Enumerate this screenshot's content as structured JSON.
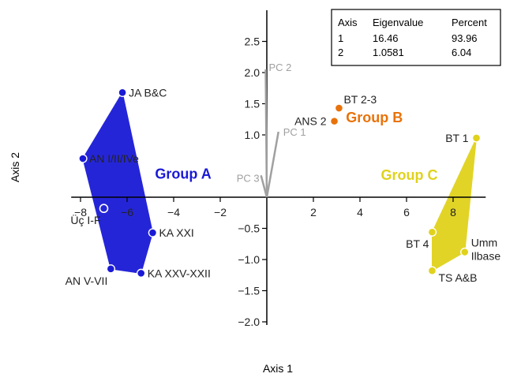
{
  "chart_data": {
    "type": "scatter",
    "xlabel": "Axis 1",
    "ylabel": "Axis 2",
    "xlim": [
      -8.4,
      9.4
    ],
    "ylim": [
      -2.05,
      3.0
    ],
    "x_ticks": [
      -8,
      -6,
      -4,
      -2,
      2,
      4,
      6,
      8
    ],
    "y_ticks": [
      -2.0,
      -1.5,
      -1.0,
      -0.5,
      1.0,
      1.5,
      2.0,
      2.5
    ],
    "grid": false,
    "groups": [
      {
        "name": "Group A",
        "color": "#1a1ad6",
        "label_at": [
          -4.8,
          0.3
        ],
        "hull": [
          "JA B&C",
          "AN I/II/IVe",
          "AN V-VII",
          "KA XXV-XXII",
          "KA XXI"
        ],
        "points": [
          {
            "label": "JA B&C",
            "x": -6.2,
            "y": 1.68,
            "label_pos": "right"
          },
          {
            "label": "AN I/II/IVe",
            "x": -7.9,
            "y": 0.62,
            "label_pos": "right"
          },
          {
            "label": "Üç I-F",
            "x": -7.0,
            "y": -0.18,
            "label_pos": "left-below",
            "hollow": true
          },
          {
            "label": "KA XXI",
            "x": -4.9,
            "y": -0.57,
            "label_pos": "right"
          },
          {
            "label": "KA XXV-XXII",
            "x": -5.4,
            "y": -1.22,
            "label_pos": "right"
          },
          {
            "label": "AN V-VII",
            "x": -6.7,
            "y": -1.15,
            "label_pos": "left-below"
          }
        ]
      },
      {
        "name": "Group B",
        "color": "#e8720a",
        "label_at": [
          3.4,
          1.2
        ],
        "hull": [],
        "points": [
          {
            "label": "BT 2-3",
            "x": 3.1,
            "y": 1.43,
            "label_pos": "right-above"
          },
          {
            "label": "ANS 2",
            "x": 2.9,
            "y": 1.22,
            "label_pos": "left"
          }
        ]
      },
      {
        "name": "Group C",
        "color": "#e0d21c",
        "label_at": [
          4.9,
          0.28
        ],
        "hull": [
          "BT 1",
          "Umm Ilbase",
          "TS A&B",
          "BT 4"
        ],
        "points": [
          {
            "label": "BT 1",
            "x": 9.0,
            "y": 0.95,
            "label_pos": "left"
          },
          {
            "label": "BT 4",
            "x": 7.1,
            "y": -0.56,
            "label_pos": "left-below"
          },
          {
            "label": "Umm Ilbase",
            "x": 8.5,
            "y": -0.88,
            "label_pos": "right-wrap"
          },
          {
            "label": "TS A&B",
            "x": 7.1,
            "y": -1.18,
            "label_pos": "right-below"
          }
        ]
      }
    ],
    "vectors": [
      {
        "label": "PC 2",
        "x": -0.05,
        "y": 2.05,
        "label_pos": "right-above"
      },
      {
        "label": "PC 1",
        "x": 0.5,
        "y": 1.05,
        "label_pos": "right"
      },
      {
        "label": "PC 3",
        "x": -0.25,
        "y": 0.35,
        "label_pos": "left-below"
      }
    ],
    "vector_color": "#a0a0a0",
    "legend_table": {
      "headers": [
        "Axis",
        "Eigenvalue",
        "Percent"
      ],
      "rows": [
        [
          "1",
          "16.46",
          "93.96"
        ],
        [
          "2",
          "1.0581",
          "6.04"
        ]
      ],
      "placement": "top-right"
    }
  }
}
